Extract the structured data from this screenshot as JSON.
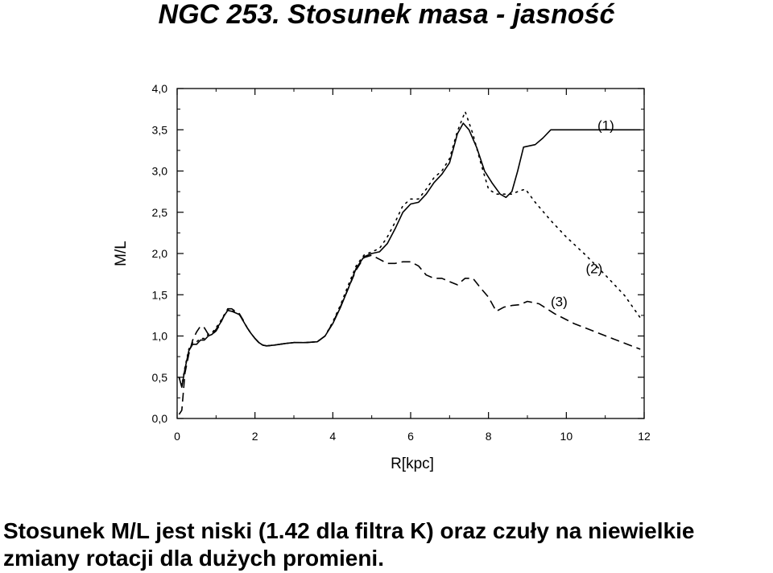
{
  "page": {
    "title": "NGC 253. Stosunek masa - jasność",
    "caption": "Stosunek M/L jest niski (1.42 dla filtra K) oraz czuły na niewielkie zmiany rotacji dla dużych promieni."
  },
  "chart_data": {
    "type": "line",
    "title": "",
    "xlabel": "R[kpc]",
    "ylabel": "M/L",
    "xlim": [
      0,
      12
    ],
    "ylim": [
      0,
      4
    ],
    "x_ticks": [
      0,
      2,
      4,
      6,
      8,
      10,
      12
    ],
    "y_ticks": [
      0,
      0.5,
      1.0,
      1.5,
      2.0,
      2.5,
      3.0,
      3.5,
      4.0
    ],
    "x_tick_labels": [
      "0",
      "2",
      "4",
      "6",
      "8",
      "10",
      "12"
    ],
    "y_tick_labels": [
      "0,0",
      "0,5",
      "1,0",
      "1,5",
      "2,0",
      "2,5",
      "3,0",
      "3,5",
      "4,0"
    ],
    "grid": false,
    "series": [
      {
        "name": "(1)",
        "style": "solid",
        "color": "#000000",
        "label_at": [
          10.8,
          3.5
        ],
        "x": [
          0.05,
          0.12,
          0.2,
          0.3,
          0.4,
          0.5,
          0.6,
          0.7,
          0.8,
          0.9,
          1.0,
          1.1,
          1.2,
          1.3,
          1.4,
          1.5,
          1.6,
          1.7,
          1.8,
          1.9,
          2.0,
          2.1,
          2.2,
          2.3,
          2.5,
          2.8,
          3.0,
          3.3,
          3.6,
          3.8,
          4.0,
          4.2,
          4.4,
          4.6,
          4.8,
          5.0,
          5.2,
          5.4,
          5.6,
          5.8,
          6.0,
          6.2,
          6.4,
          6.6,
          6.8,
          7.0,
          7.2,
          7.35,
          7.5,
          7.7,
          7.9,
          8.1,
          8.3,
          8.45,
          8.6,
          8.75,
          8.9,
          9.2,
          9.4,
          9.6,
          9.8,
          10.0,
          10.3,
          10.6,
          11.0,
          11.5,
          11.9
        ],
        "y": [
          0.5,
          0.38,
          0.6,
          0.82,
          0.9,
          0.9,
          0.95,
          0.95,
          1.0,
          1.02,
          1.08,
          1.15,
          1.24,
          1.31,
          1.3,
          1.28,
          1.26,
          1.18,
          1.1,
          1.03,
          0.97,
          0.92,
          0.89,
          0.88,
          0.89,
          0.91,
          0.92,
          0.92,
          0.93,
          1.0,
          1.15,
          1.35,
          1.58,
          1.82,
          1.96,
          2.0,
          2.02,
          2.12,
          2.3,
          2.5,
          2.6,
          2.62,
          2.72,
          2.86,
          2.96,
          3.1,
          3.45,
          3.58,
          3.5,
          3.28,
          3.0,
          2.85,
          2.72,
          2.68,
          2.75,
          3.0,
          3.29,
          3.32,
          3.4,
          3.5,
          3.5,
          3.5,
          3.5,
          3.5,
          3.5,
          3.5,
          3.5
        ]
      },
      {
        "name": "(2)",
        "style": "dotted",
        "color": "#000000",
        "label_at": [
          10.5,
          1.76
        ],
        "x": [
          0.05,
          0.12,
          0.2,
          0.3,
          0.4,
          0.5,
          0.6,
          0.7,
          0.8,
          0.9,
          1.0,
          1.1,
          1.2,
          1.3,
          1.4,
          1.5,
          1.6,
          1.7,
          1.8,
          1.9,
          2.0,
          2.1,
          2.2,
          2.3,
          2.5,
          2.8,
          3.0,
          3.3,
          3.6,
          3.8,
          4.0,
          4.2,
          4.4,
          4.6,
          4.8,
          5.0,
          5.2,
          5.4,
          5.6,
          5.8,
          6.0,
          6.2,
          6.4,
          6.6,
          6.8,
          7.0,
          7.2,
          7.4,
          7.6,
          7.8,
          8.0,
          8.2,
          8.4,
          8.6,
          8.8,
          8.95,
          9.2,
          9.6,
          10.0,
          10.5,
          11.0,
          11.5,
          11.9
        ],
        "y": [
          0.5,
          0.4,
          0.62,
          0.84,
          0.92,
          0.93,
          0.97,
          0.97,
          1.02,
          1.04,
          1.1,
          1.17,
          1.25,
          1.32,
          1.31,
          1.29,
          1.26,
          1.18,
          1.1,
          1.03,
          0.97,
          0.92,
          0.89,
          0.88,
          0.89,
          0.91,
          0.92,
          0.92,
          0.93,
          1.0,
          1.17,
          1.38,
          1.62,
          1.85,
          1.98,
          2.02,
          2.06,
          2.2,
          2.38,
          2.58,
          2.66,
          2.66,
          2.78,
          2.92,
          3.0,
          3.15,
          3.48,
          3.72,
          3.45,
          3.1,
          2.78,
          2.72,
          2.72,
          2.72,
          2.76,
          2.78,
          2.62,
          2.4,
          2.2,
          1.98,
          1.74,
          1.49,
          1.22
        ]
      },
      {
        "name": "(3)",
        "style": "dashed",
        "color": "#000000",
        "label_at": [
          9.6,
          1.36
        ],
        "x": [
          0.05,
          0.12,
          0.2,
          0.3,
          0.4,
          0.5,
          0.6,
          0.7,
          0.8,
          0.9,
          1.0,
          1.1,
          1.2,
          1.3,
          1.4,
          1.5,
          1.6,
          1.7,
          1.8,
          1.9,
          2.0,
          2.1,
          2.2,
          2.3,
          2.5,
          2.8,
          3.0,
          3.3,
          3.6,
          3.8,
          4.0,
          4.2,
          4.4,
          4.6,
          4.8,
          5.0,
          5.2,
          5.4,
          5.6,
          5.8,
          6.0,
          6.2,
          6.4,
          6.6,
          6.8,
          7.0,
          7.2,
          7.4,
          7.6,
          7.8,
          8.0,
          8.2,
          8.4,
          8.6,
          8.8,
          9.0,
          9.3,
          9.7,
          10.2,
          10.8,
          11.4,
          11.9
        ],
        "y": [
          0.05,
          0.1,
          0.55,
          0.78,
          0.95,
          1.05,
          1.12,
          1.1,
          1.02,
          1.02,
          1.06,
          1.14,
          1.24,
          1.33,
          1.33,
          1.3,
          1.27,
          1.19,
          1.1,
          1.03,
          0.97,
          0.92,
          0.89,
          0.88,
          0.89,
          0.91,
          0.92,
          0.92,
          0.93,
          1.0,
          1.16,
          1.36,
          1.58,
          1.8,
          1.95,
          1.98,
          1.93,
          1.88,
          1.88,
          1.9,
          1.9,
          1.85,
          1.74,
          1.7,
          1.7,
          1.66,
          1.62,
          1.7,
          1.7,
          1.58,
          1.47,
          1.3,
          1.35,
          1.37,
          1.38,
          1.42,
          1.39,
          1.27,
          1.15,
          1.04,
          0.93,
          0.84
        ]
      }
    ]
  }
}
